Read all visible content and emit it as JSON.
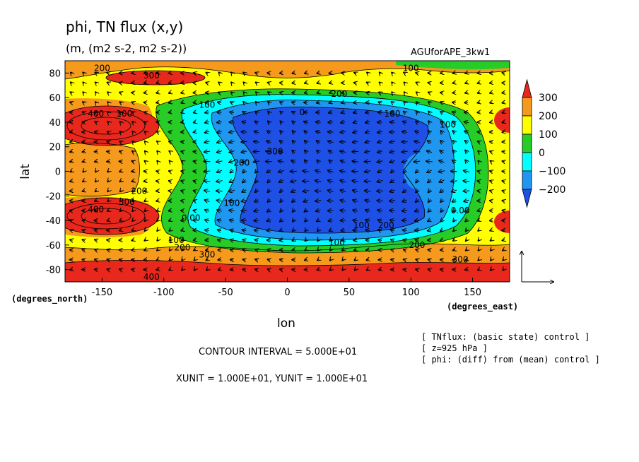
{
  "chart_data": {
    "type": "heatmap",
    "title": "phi, TN flux (x,y)",
    "subtitle": "(m, (m2 s-2, m2 s-2))",
    "run_name": "AGUforAPE_3kw1",
    "xlabel": "lon",
    "ylabel": "lat",
    "x_unit_label": "(degrees_east)",
    "y_unit_label": "(degrees_north)",
    "xlim": [
      -180,
      180
    ],
    "ylim": [
      -90,
      90
    ],
    "x_ticks": [
      -150,
      -100,
      -50,
      0,
      50,
      100,
      150
    ],
    "y_ticks": [
      80,
      60,
      40,
      20,
      0,
      -20,
      -40,
      -60,
      -80
    ],
    "colorbar": {
      "labels": [
        "300",
        "200",
        "100",
        "0",
        "−100",
        "−200"
      ],
      "colors": [
        "#e8281c",
        "#f59a1c",
        "#ffff00",
        "#27cc27",
        "#00ffff",
        "#1f96f0",
        "#1e50e6"
      ]
    },
    "contour_labels": [
      {
        "lon": -150,
        "lat": 84,
        "text": "200"
      },
      {
        "lon": -110,
        "lat": 78,
        "text": "300"
      },
      {
        "lon": 100,
        "lat": 84,
        "text": "100"
      },
      {
        "lon": 42,
        "lat": 63,
        "text": "200"
      },
      {
        "lon": -65,
        "lat": 54,
        "text": "100"
      },
      {
        "lon": -155,
        "lat": 47,
        "text": "400"
      },
      {
        "lon": -132,
        "lat": 47,
        "text": "100"
      },
      {
        "lon": 12,
        "lat": 48,
        "text": "0"
      },
      {
        "lon": 85,
        "lat": 47,
        "text": "100"
      },
      {
        "lon": 130,
        "lat": 38,
        "text": "100"
      },
      {
        "lon": -10,
        "lat": 16,
        "text": "300"
      },
      {
        "lon": -37,
        "lat": 7,
        "text": "200"
      },
      {
        "lon": -120,
        "lat": -16,
        "text": "200"
      },
      {
        "lon": -130,
        "lat": -25,
        "text": "300"
      },
      {
        "lon": -45,
        "lat": -26,
        "text": "100"
      },
      {
        "lon": -155,
        "lat": -31,
        "text": "400"
      },
      {
        "lon": -78,
        "lat": -38,
        "text": "0.00"
      },
      {
        "lon": 60,
        "lat": -44,
        "text": "100"
      },
      {
        "lon": 80,
        "lat": -44,
        "text": "200"
      },
      {
        "lon": 140,
        "lat": -32,
        "text": "0.00"
      },
      {
        "lon": 40,
        "lat": -58,
        "text": "100"
      },
      {
        "lon": -90,
        "lat": -56,
        "text": "100"
      },
      {
        "lon": -85,
        "lat": -62,
        "text": "200"
      },
      {
        "lon": -65,
        "lat": -68,
        "text": "300"
      },
      {
        "lon": 105,
        "lat": -60,
        "text": "200"
      },
      {
        "lon": 140,
        "lat": -72,
        "text": "300"
      },
      {
        "lon": -110,
        "lat": -86,
        "text": "400"
      }
    ],
    "reference_vector": {
      "x_unit": 10,
      "y_unit": 10
    }
  },
  "footer": {
    "contour_interval": "CONTOUR INTERVAL = 5.000E+01",
    "units": "XUNIT = 1.000E+01, YUNIT = 1.000E+01",
    "info_lines": [
      "[ TNflux: (basic state) control ]",
      "[ z=925 hPa ]",
      "[ phi: (diff) from (mean) control ]"
    ]
  }
}
